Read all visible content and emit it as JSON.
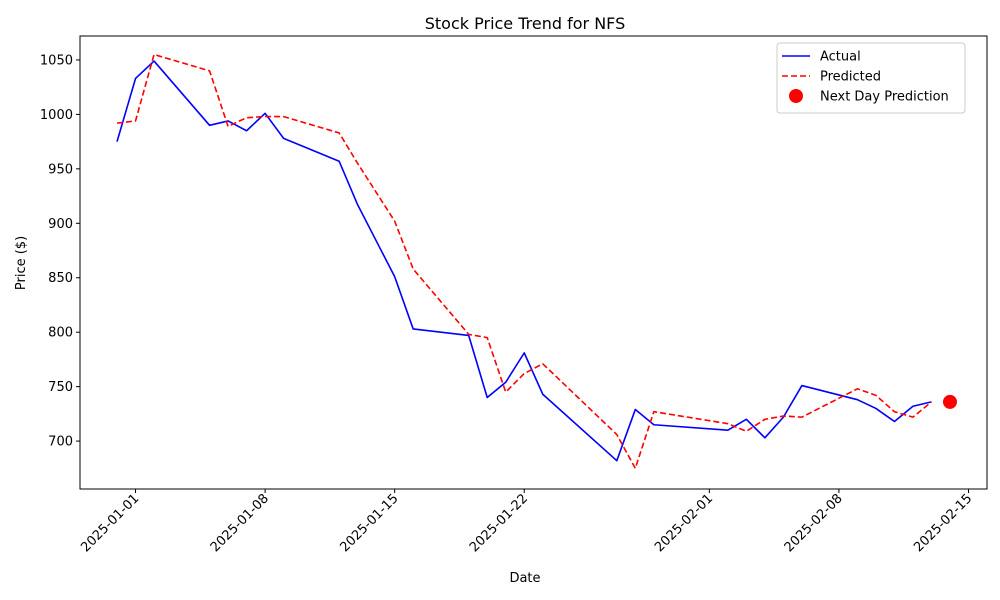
{
  "chart_data": {
    "type": "line",
    "title": "Stock Price Trend for NFS",
    "xlabel": "Date",
    "ylabel": "Price ($)",
    "xlim": [
      "2024-12-29",
      "2025-02-16"
    ],
    "ylim": [
      656,
      1072
    ],
    "x_ticks": [
      "2025-01-01",
      "2025-01-08",
      "2025-01-15",
      "2025-01-22",
      "2025-02-01",
      "2025-02-08",
      "2025-02-15"
    ],
    "y_ticks": [
      700,
      750,
      800,
      850,
      900,
      950,
      1000,
      1050
    ],
    "grid": false,
    "legend_position": "top-right",
    "series": [
      {
        "name": "Actual",
        "color": "#0000ff",
        "style": "solid",
        "points": [
          [
            "2024-12-31",
            975
          ],
          [
            "2025-01-01",
            1033
          ],
          [
            "2025-01-02",
            1049
          ],
          [
            "2025-01-05",
            990
          ],
          [
            "2025-01-06",
            994
          ],
          [
            "2025-01-07",
            985
          ],
          [
            "2025-01-08",
            1001
          ],
          [
            "2025-01-09",
            978
          ],
          [
            "2025-01-12",
            957
          ],
          [
            "2025-01-13",
            917
          ],
          [
            "2025-01-15",
            851
          ],
          [
            "2025-01-16",
            803
          ],
          [
            "2025-01-19",
            797
          ],
          [
            "2025-01-20",
            740
          ],
          [
            "2025-01-21",
            754
          ],
          [
            "2025-01-22",
            781
          ],
          [
            "2025-01-23",
            743
          ],
          [
            "2025-01-27",
            682
          ],
          [
            "2025-01-28",
            729
          ],
          [
            "2025-01-29",
            715
          ],
          [
            "2025-02-02",
            710
          ],
          [
            "2025-02-03",
            720
          ],
          [
            "2025-02-04",
            703
          ],
          [
            "2025-02-05",
            722
          ],
          [
            "2025-02-06",
            751
          ],
          [
            "2025-02-09",
            738
          ],
          [
            "2025-02-10",
            730
          ],
          [
            "2025-02-11",
            718
          ],
          [
            "2025-02-12",
            732
          ],
          [
            "2025-02-13",
            736
          ]
        ]
      },
      {
        "name": "Predicted",
        "color": "#ff0000",
        "style": "dashed",
        "points": [
          [
            "2024-12-31",
            992
          ],
          [
            "2025-01-01",
            994
          ],
          [
            "2025-01-02",
            1055
          ],
          [
            "2025-01-05",
            1040
          ],
          [
            "2025-01-06",
            989
          ],
          [
            "2025-01-07",
            997
          ],
          [
            "2025-01-08",
            998
          ],
          [
            "2025-01-09",
            998
          ],
          [
            "2025-01-12",
            983
          ],
          [
            "2025-01-13",
            955
          ],
          [
            "2025-01-15",
            902
          ],
          [
            "2025-01-16",
            858
          ],
          [
            "2025-01-19",
            798
          ],
          [
            "2025-01-20",
            795
          ],
          [
            "2025-01-21",
            745
          ],
          [
            "2025-01-22",
            762
          ],
          [
            "2025-01-23",
            771
          ],
          [
            "2025-01-27",
            706
          ],
          [
            "2025-01-28",
            675
          ],
          [
            "2025-01-29",
            727
          ],
          [
            "2025-02-02",
            716
          ],
          [
            "2025-02-03",
            709
          ],
          [
            "2025-02-04",
            720
          ],
          [
            "2025-02-05",
            723
          ],
          [
            "2025-02-06",
            722
          ],
          [
            "2025-02-09",
            748
          ],
          [
            "2025-02-10",
            742
          ],
          [
            "2025-02-11",
            727
          ],
          [
            "2025-02-12",
            722
          ],
          [
            "2025-02-13",
            736
          ]
        ]
      },
      {
        "name": "Next Day Prediction",
        "color": "#ff0000",
        "style": "marker",
        "points": [
          [
            "2025-02-14",
            736
          ]
        ]
      }
    ]
  }
}
